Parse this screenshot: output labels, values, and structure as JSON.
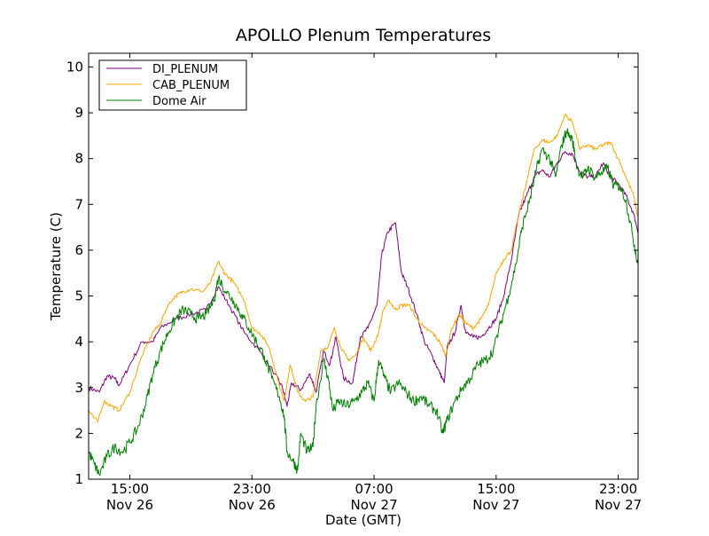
{
  "chart_data": {
    "type": "line",
    "title": "APOLLO Plenum Temperatures",
    "xlabel": "Date (GMT)",
    "ylabel": "Temperature (C)",
    "xlim_hours": [
      12.3,
      48.3
    ],
    "ylim": [
      1,
      10.3
    ],
    "yticks": [
      1,
      2,
      3,
      4,
      5,
      6,
      7,
      8,
      9,
      10
    ],
    "xticks": [
      {
        "hour": 15,
        "line1": "15:00",
        "line2": "Nov 26"
      },
      {
        "hour": 23,
        "line1": "23:00",
        "line2": "Nov 26"
      },
      {
        "hour": 31,
        "line1": "07:00",
        "line2": "Nov 27"
      },
      {
        "hour": 39,
        "line1": "15:00",
        "line2": "Nov 27"
      },
      {
        "hour": 47,
        "line1": "23:00",
        "line2": "Nov 27"
      }
    ],
    "legend_position": "top-left",
    "series": [
      {
        "name": "DI_PLENUM",
        "color": "#800080",
        "points": [
          [
            12.3,
            3.0
          ],
          [
            13.0,
            2.9
          ],
          [
            13.5,
            3.25
          ],
          [
            14.0,
            3.2
          ],
          [
            14.3,
            3.05
          ],
          [
            15.0,
            3.5
          ],
          [
            15.8,
            4.0
          ],
          [
            16.5,
            4.0
          ],
          [
            17.0,
            4.3
          ],
          [
            18.0,
            4.5
          ],
          [
            19.0,
            4.6
          ],
          [
            20.0,
            4.7
          ],
          [
            20.8,
            5.2
          ],
          [
            21.5,
            4.8
          ],
          [
            22.5,
            4.2
          ],
          [
            23.5,
            3.8
          ],
          [
            24.5,
            3.3
          ],
          [
            25.0,
            3.0
          ],
          [
            25.3,
            2.6
          ],
          [
            25.6,
            3.1
          ],
          [
            26.2,
            2.95
          ],
          [
            26.8,
            3.3
          ],
          [
            27.2,
            2.9
          ],
          [
            27.7,
            3.8
          ],
          [
            28.1,
            3.5
          ],
          [
            28.5,
            4.1
          ],
          [
            29.0,
            3.2
          ],
          [
            29.6,
            3.1
          ],
          [
            30.1,
            4.1
          ],
          [
            30.6,
            4.3
          ],
          [
            31.2,
            4.8
          ],
          [
            31.5,
            5.9
          ],
          [
            31.9,
            6.4
          ],
          [
            32.4,
            6.6
          ],
          [
            32.8,
            5.5
          ],
          [
            33.2,
            5.2
          ],
          [
            33.8,
            4.6
          ],
          [
            34.3,
            4.0
          ],
          [
            34.8,
            3.7
          ],
          [
            35.2,
            3.4
          ],
          [
            35.6,
            3.1
          ],
          [
            35.8,
            3.9
          ],
          [
            36.3,
            4.2
          ],
          [
            36.7,
            4.8
          ],
          [
            37.0,
            4.2
          ],
          [
            37.5,
            4.1
          ],
          [
            38.0,
            4.1
          ],
          [
            38.5,
            4.3
          ],
          [
            39.0,
            4.5
          ],
          [
            39.5,
            5.0
          ],
          [
            40.0,
            5.8
          ],
          [
            40.5,
            6.8
          ],
          [
            41.0,
            7.2
          ],
          [
            41.5,
            7.6
          ],
          [
            42.0,
            7.75
          ],
          [
            42.5,
            7.6
          ],
          [
            43.0,
            7.9
          ],
          [
            43.5,
            8.15
          ],
          [
            44.0,
            8.1
          ],
          [
            44.5,
            7.7
          ],
          [
            45.0,
            7.6
          ],
          [
            45.5,
            7.6
          ],
          [
            46.0,
            7.9
          ],
          [
            46.5,
            7.6
          ],
          [
            47.0,
            7.45
          ],
          [
            47.5,
            7.2
          ],
          [
            48.0,
            6.8
          ],
          [
            48.3,
            6.4
          ]
        ]
      },
      {
        "name": "CAB_PLENUM",
        "color": "#ffa500",
        "points": [
          [
            12.3,
            2.5
          ],
          [
            12.9,
            2.25
          ],
          [
            13.3,
            2.7
          ],
          [
            13.8,
            2.6
          ],
          [
            14.3,
            2.5
          ],
          [
            15.0,
            2.9
          ],
          [
            15.8,
            3.7
          ],
          [
            16.5,
            4.2
          ],
          [
            17.0,
            4.4
          ],
          [
            17.5,
            4.8
          ],
          [
            18.0,
            5.0
          ],
          [
            18.5,
            5.1
          ],
          [
            19.0,
            5.15
          ],
          [
            19.8,
            5.1
          ],
          [
            20.3,
            5.3
          ],
          [
            20.8,
            5.75
          ],
          [
            21.2,
            5.5
          ],
          [
            21.8,
            5.3
          ],
          [
            22.5,
            4.9
          ],
          [
            23.0,
            4.3
          ],
          [
            23.5,
            4.2
          ],
          [
            24.1,
            3.9
          ],
          [
            24.6,
            3.3
          ],
          [
            25.1,
            2.7
          ],
          [
            25.5,
            3.5
          ],
          [
            26.0,
            2.9
          ],
          [
            26.5,
            2.7
          ],
          [
            27.0,
            2.8
          ],
          [
            27.5,
            3.8
          ],
          [
            28.0,
            3.9
          ],
          [
            28.4,
            4.3
          ],
          [
            28.8,
            3.9
          ],
          [
            29.3,
            3.6
          ],
          [
            29.8,
            3.7
          ],
          [
            30.3,
            4.1
          ],
          [
            30.8,
            3.8
          ],
          [
            31.3,
            4.2
          ],
          [
            31.6,
            4.7
          ],
          [
            32.0,
            4.9
          ],
          [
            32.4,
            4.7
          ],
          [
            32.8,
            4.8
          ],
          [
            33.3,
            4.8
          ],
          [
            33.8,
            4.5
          ],
          [
            34.3,
            4.3
          ],
          [
            34.8,
            4.2
          ],
          [
            35.3,
            4.0
          ],
          [
            35.7,
            3.7
          ],
          [
            36.1,
            4.3
          ],
          [
            36.6,
            4.6
          ],
          [
            37.0,
            4.4
          ],
          [
            37.5,
            4.3
          ],
          [
            38.0,
            4.5
          ],
          [
            38.5,
            4.8
          ],
          [
            39.0,
            5.5
          ],
          [
            39.5,
            5.8
          ],
          [
            40.0,
            6.0
          ],
          [
            40.5,
            6.8
          ],
          [
            41.0,
            7.5
          ],
          [
            41.5,
            8.2
          ],
          [
            42.0,
            8.4
          ],
          [
            42.5,
            8.35
          ],
          [
            43.0,
            8.5
          ],
          [
            43.5,
            8.95
          ],
          [
            44.0,
            8.8
          ],
          [
            44.5,
            8.2
          ],
          [
            45.0,
            8.3
          ],
          [
            45.5,
            8.2
          ],
          [
            46.0,
            8.3
          ],
          [
            46.5,
            8.35
          ],
          [
            47.0,
            8.0
          ],
          [
            47.5,
            7.6
          ],
          [
            48.0,
            7.2
          ],
          [
            48.3,
            6.7
          ]
        ]
      },
      {
        "name": "Dome Air",
        "color": "#008000",
        "points": [
          [
            12.3,
            1.6
          ],
          [
            12.7,
            1.3
          ],
          [
            13.0,
            1.1
          ],
          [
            13.5,
            1.5
          ],
          [
            14.0,
            1.7
          ],
          [
            14.5,
            1.6
          ],
          [
            15.0,
            1.8
          ],
          [
            15.5,
            2.1
          ],
          [
            16.0,
            2.6
          ],
          [
            16.5,
            3.3
          ],
          [
            17.0,
            3.8
          ],
          [
            17.5,
            4.2
          ],
          [
            18.0,
            4.5
          ],
          [
            18.5,
            4.7
          ],
          [
            19.0,
            4.6
          ],
          [
            19.5,
            4.5
          ],
          [
            20.0,
            4.6
          ],
          [
            20.5,
            4.9
          ],
          [
            20.8,
            5.4
          ],
          [
            21.3,
            5.1
          ],
          [
            21.8,
            4.9
          ],
          [
            22.3,
            4.6
          ],
          [
            22.8,
            4.3
          ],
          [
            23.3,
            4.0
          ],
          [
            23.8,
            3.7
          ],
          [
            24.3,
            3.2
          ],
          [
            24.8,
            2.8
          ],
          [
            25.1,
            2.4
          ],
          [
            25.3,
            1.6
          ],
          [
            25.7,
            1.4
          ],
          [
            26.0,
            1.2
          ],
          [
            26.2,
            2.0
          ],
          [
            26.6,
            1.6
          ],
          [
            27.0,
            1.7
          ],
          [
            27.2,
            2.6
          ],
          [
            27.7,
            3.6
          ],
          [
            28.0,
            3.2
          ],
          [
            28.3,
            2.5
          ],
          [
            28.7,
            2.7
          ],
          [
            29.2,
            2.6
          ],
          [
            29.7,
            2.7
          ],
          [
            30.2,
            2.9
          ],
          [
            30.6,
            3.1
          ],
          [
            31.0,
            2.7
          ],
          [
            31.3,
            3.6
          ],
          [
            31.7,
            3.2
          ],
          [
            32.1,
            2.9
          ],
          [
            32.6,
            3.1
          ],
          [
            33.1,
            2.9
          ],
          [
            33.6,
            2.7
          ],
          [
            34.1,
            2.8
          ],
          [
            34.6,
            2.6
          ],
          [
            35.1,
            2.5
          ],
          [
            35.5,
            2.0
          ],
          [
            35.8,
            2.3
          ],
          [
            36.3,
            2.7
          ],
          [
            36.8,
            3.0
          ],
          [
            37.3,
            3.2
          ],
          [
            37.8,
            3.5
          ],
          [
            38.3,
            3.6
          ],
          [
            38.8,
            3.8
          ],
          [
            39.3,
            4.4
          ],
          [
            39.8,
            5.0
          ],
          [
            40.3,
            5.7
          ],
          [
            40.7,
            6.5
          ],
          [
            41.2,
            7.1
          ],
          [
            41.6,
            7.7
          ],
          [
            42.0,
            8.2
          ],
          [
            42.5,
            8.0
          ],
          [
            42.9,
            7.6
          ],
          [
            43.3,
            8.3
          ],
          [
            43.6,
            8.6
          ],
          [
            44.0,
            8.4
          ],
          [
            44.3,
            7.8
          ],
          [
            44.7,
            7.6
          ],
          [
            45.0,
            7.8
          ],
          [
            45.5,
            7.6
          ],
          [
            45.9,
            7.7
          ],
          [
            46.3,
            7.8
          ],
          [
            46.7,
            7.4
          ],
          [
            47.1,
            7.4
          ],
          [
            47.5,
            7.1
          ],
          [
            47.9,
            6.4
          ],
          [
            48.3,
            5.7
          ]
        ]
      }
    ]
  }
}
